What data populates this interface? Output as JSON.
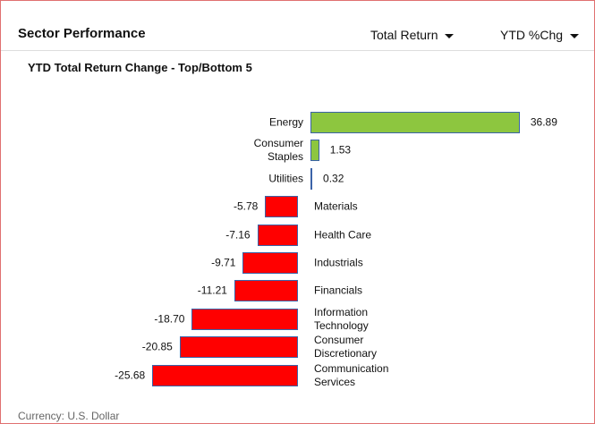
{
  "header": {
    "title": "Sector Performance",
    "menus": [
      "Total Return",
      "YTD %Chg"
    ]
  },
  "chart_data": {
    "type": "bar",
    "orientation": "horizontal",
    "title": "YTD Total Return Change - Top/Bottom 5",
    "categories": [
      "Energy",
      "Consumer Staples",
      "Utilities",
      "Materials",
      "Health Care",
      "Industrials",
      "Financials",
      "Information Technology",
      "Consumer Discretionary",
      "Communication Services"
    ],
    "values": [
      36.89,
      1.53,
      0.32,
      -5.78,
      -7.16,
      -9.71,
      -11.21,
      -18.7,
      -20.85,
      -25.68
    ],
    "value_labels": [
      "36.89",
      "1.53",
      "0.32",
      "-5.78",
      "-7.16",
      "-9.71",
      "-11.21",
      "-18.70",
      "-20.85",
      "-25.68"
    ],
    "positive_color": "#8dc63f",
    "negative_color": "#ff0000",
    "border_color": "#3b63a8"
  },
  "footer": "Currency: U.S. Dollar"
}
